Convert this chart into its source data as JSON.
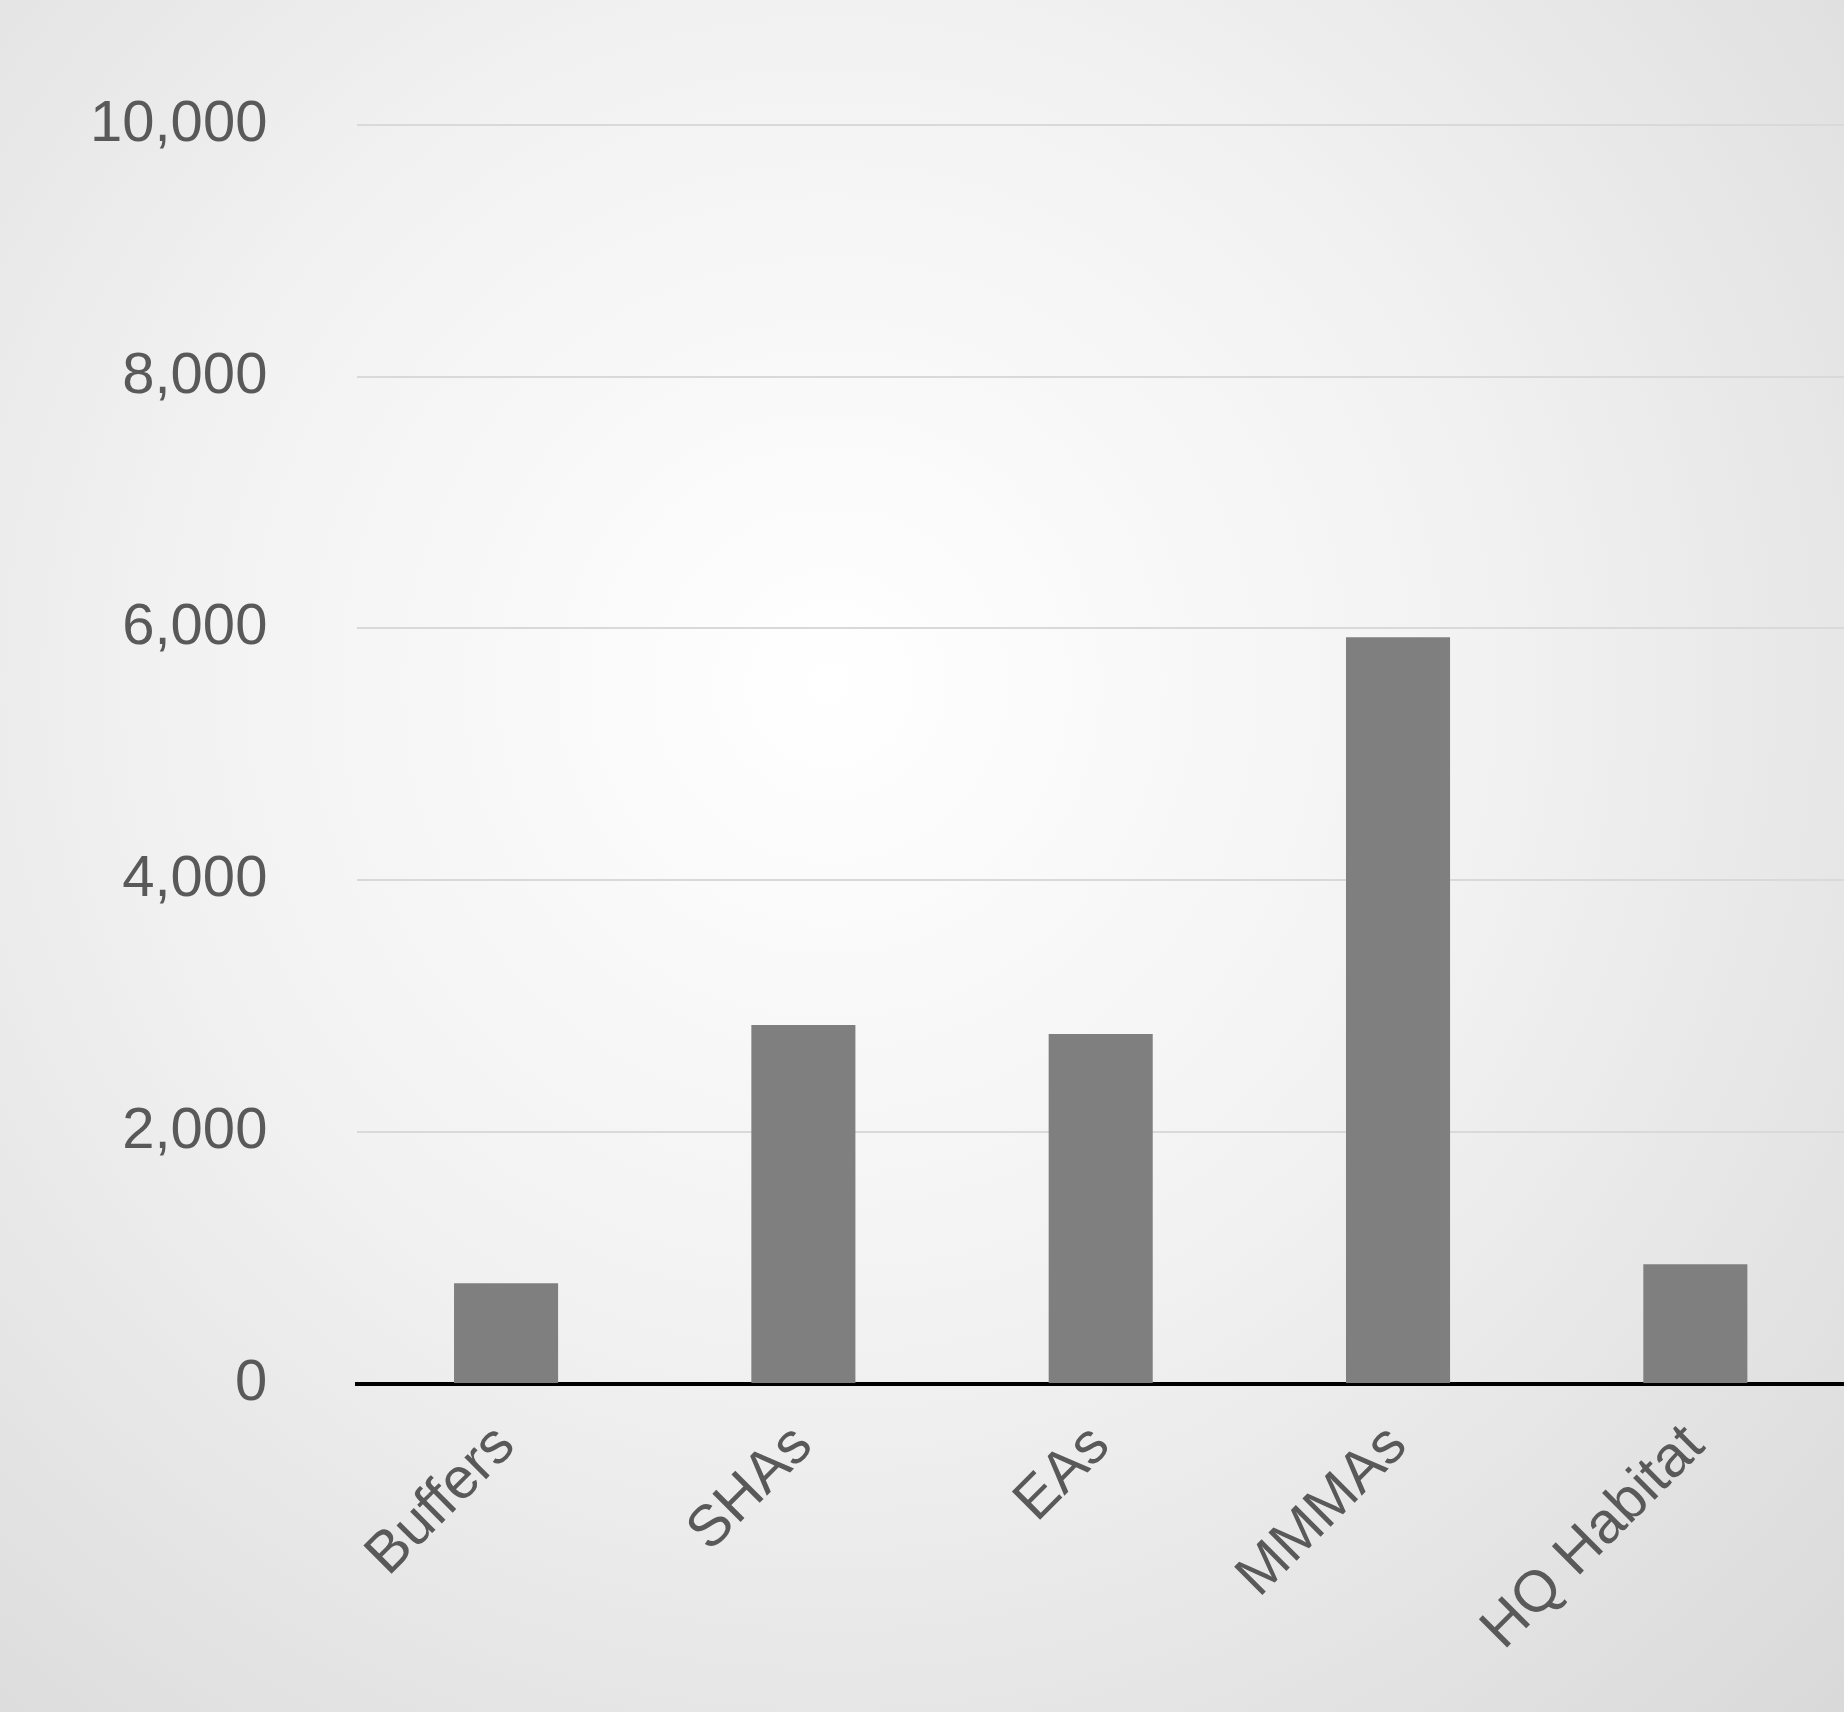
{
  "chart_data": {
    "type": "bar",
    "categories": [
      "Buffers",
      "SHAs",
      "EAs",
      "MMMAs",
      "HQ Habitat"
    ],
    "values": [
      800,
      2850,
      2780,
      5930,
      950
    ],
    "color": "#7f7f7f",
    "ylim": [
      0,
      10000
    ],
    "yticks": [
      0,
      {
        "value": 2000,
        "label": "2,000"
      },
      {
        "value": 4000,
        "label": "4,000"
      },
      {
        "value": 6000,
        "label": "6,000"
      },
      {
        "value": 8000,
        "label": "8,000"
      },
      {
        "value": 10000,
        "label": "10,000"
      }
    ],
    "grid": "y",
    "legend": false
  }
}
